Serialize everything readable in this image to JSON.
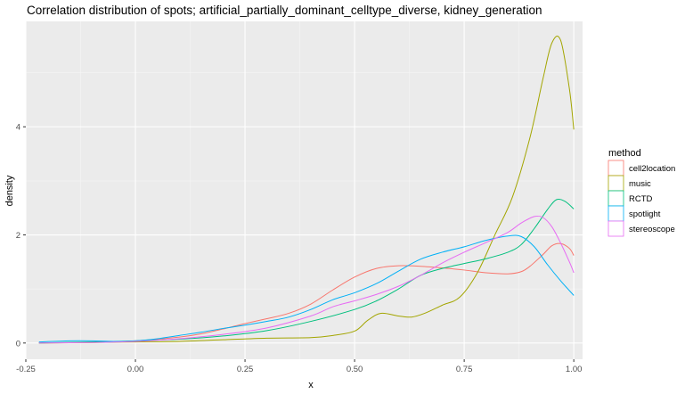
{
  "chart_data": {
    "type": "line",
    "title": "Correlation distribution of spots; artificial_partially_dominant_celltype_diverse, kidney_generation",
    "xlabel": "x",
    "ylabel": "density",
    "xlim": [
      -0.25,
      1.02
    ],
    "ylim": [
      -0.3,
      5.95
    ],
    "x_ticks": [
      -0.25,
      0.0,
      0.25,
      0.5,
      0.75,
      1.0
    ],
    "x_tick_labels": [
      "-0.25",
      "0.00",
      "0.25",
      "0.50",
      "0.75",
      "1.00"
    ],
    "y_ticks": [
      0,
      2,
      4
    ],
    "y_tick_labels": [
      "0",
      "2",
      "4"
    ],
    "grid": true,
    "legend": {
      "title": "method",
      "position": "right"
    },
    "series": [
      {
        "name": "cell2location",
        "color": "#F8766D",
        "x": [
          -0.22,
          -0.12,
          -0.05,
          0.0,
          0.05,
          0.1,
          0.15,
          0.2,
          0.25,
          0.3,
          0.35,
          0.4,
          0.45,
          0.5,
          0.55,
          0.6,
          0.65,
          0.7,
          0.75,
          0.8,
          0.85,
          0.88,
          0.9,
          0.93,
          0.95,
          0.97,
          0.99,
          1.0
        ],
        "y": [
          0.0,
          0.01,
          0.02,
          0.04,
          0.07,
          0.11,
          0.17,
          0.26,
          0.36,
          0.45,
          0.55,
          0.72,
          0.98,
          1.22,
          1.38,
          1.43,
          1.42,
          1.39,
          1.35,
          1.3,
          1.28,
          1.32,
          1.42,
          1.64,
          1.8,
          1.84,
          1.75,
          1.62
        ]
      },
      {
        "name": "music",
        "color": "#A3A500",
        "x": [
          -0.22,
          -0.1,
          0.0,
          0.1,
          0.2,
          0.3,
          0.4,
          0.45,
          0.5,
          0.53,
          0.56,
          0.6,
          0.63,
          0.66,
          0.7,
          0.74,
          0.78,
          0.82,
          0.86,
          0.9,
          0.93,
          0.95,
          0.97,
          0.99,
          1.0
        ],
        "y": [
          0.0,
          0.01,
          0.02,
          0.03,
          0.06,
          0.09,
          0.1,
          0.14,
          0.22,
          0.42,
          0.55,
          0.5,
          0.48,
          0.55,
          0.7,
          0.85,
          1.3,
          2.0,
          2.7,
          3.8,
          4.9,
          5.55,
          5.6,
          4.7,
          3.95
        ]
      },
      {
        "name": "RCTD",
        "color": "#00BF7D",
        "x": [
          -0.22,
          -0.1,
          0.0,
          0.1,
          0.2,
          0.3,
          0.4,
          0.5,
          0.55,
          0.6,
          0.65,
          0.7,
          0.75,
          0.8,
          0.85,
          0.88,
          0.91,
          0.94,
          0.96,
          0.98,
          1.0
        ],
        "y": [
          0.0,
          0.02,
          0.04,
          0.07,
          0.13,
          0.23,
          0.4,
          0.62,
          0.78,
          1.0,
          1.25,
          1.38,
          1.47,
          1.56,
          1.68,
          1.82,
          2.12,
          2.47,
          2.65,
          2.62,
          2.48
        ]
      },
      {
        "name": "spotlight",
        "color": "#00B0F6",
        "x": [
          -0.22,
          -0.15,
          -0.1,
          -0.05,
          0.0,
          0.05,
          0.1,
          0.15,
          0.2,
          0.25,
          0.3,
          0.35,
          0.4,
          0.45,
          0.5,
          0.55,
          0.6,
          0.65,
          0.7,
          0.75,
          0.8,
          0.85,
          0.88,
          0.91,
          0.94,
          0.97,
          1.0
        ],
        "y": [
          0.02,
          0.04,
          0.04,
          0.03,
          0.04,
          0.08,
          0.14,
          0.2,
          0.27,
          0.33,
          0.4,
          0.48,
          0.62,
          0.8,
          0.93,
          1.1,
          1.33,
          1.55,
          1.68,
          1.78,
          1.9,
          1.98,
          1.97,
          1.78,
          1.45,
          1.15,
          0.88
        ]
      },
      {
        "name": "stereoscope",
        "color": "#E76BF3",
        "x": [
          -0.22,
          -0.1,
          0.0,
          0.1,
          0.2,
          0.3,
          0.4,
          0.45,
          0.5,
          0.55,
          0.6,
          0.65,
          0.7,
          0.75,
          0.8,
          0.85,
          0.88,
          0.91,
          0.93,
          0.95,
          0.97,
          0.99,
          1.0
        ],
        "y": [
          0.0,
          0.01,
          0.03,
          0.08,
          0.16,
          0.28,
          0.5,
          0.67,
          0.78,
          0.9,
          1.05,
          1.25,
          1.48,
          1.68,
          1.86,
          2.05,
          2.22,
          2.34,
          2.32,
          2.15,
          1.85,
          1.5,
          1.3
        ]
      }
    ]
  }
}
